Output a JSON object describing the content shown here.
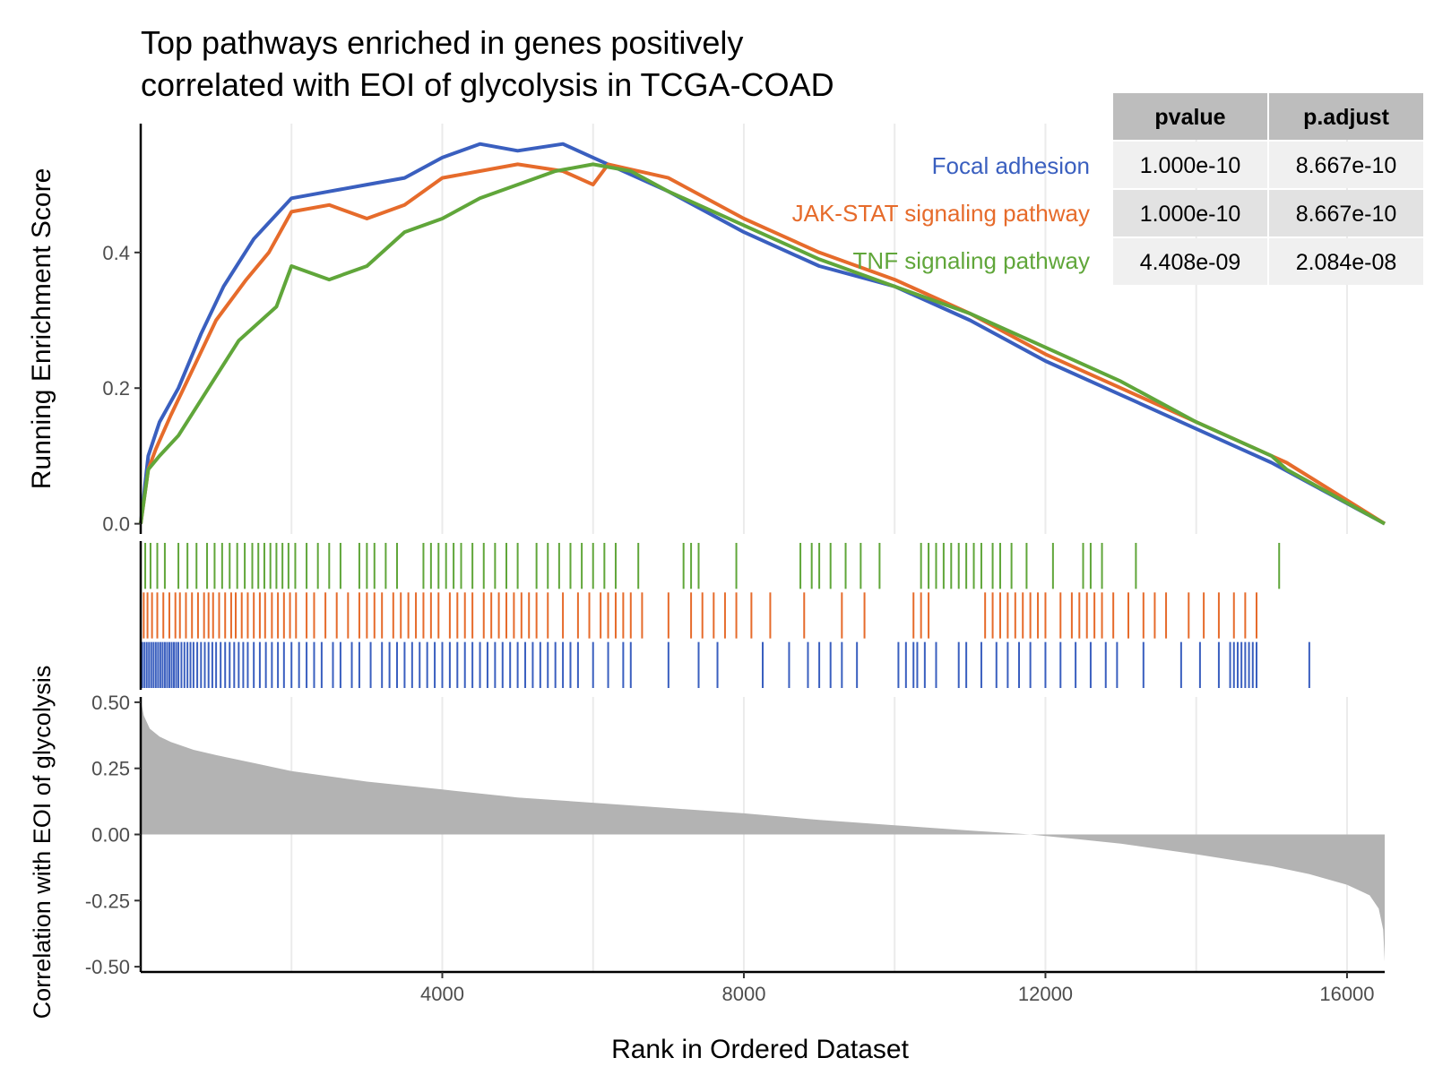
{
  "chart_data": {
    "type": "line",
    "title_line1": "Top pathways enriched in genes positively",
    "title_line2": "correlated with EOI of glycolysis in TCGA-COAD",
    "xlabel": "Rank in Ordered Dataset",
    "ylabel_top": "Running Enrichment Score",
    "ylabel_bottom": "Correlation with EOI of glycolysis",
    "xlim": [
      0,
      16500
    ],
    "x_ticks": [
      "4000",
      "8000",
      "12000",
      "16000"
    ],
    "x_tick_values": [
      4000,
      8000,
      12000,
      16000
    ],
    "es_ylim": [
      -0.015,
      0.59
    ],
    "es_ticks": [
      "0.0",
      "0.2",
      "0.4"
    ],
    "es_tick_values": [
      0.0,
      0.2,
      0.4
    ],
    "corr_ylim": [
      -0.52,
      0.52
    ],
    "corr_ticks": [
      "0.50",
      "0.25",
      "0.00",
      "-0.25",
      "-0.50"
    ],
    "corr_tick_values": [
      0.5,
      0.25,
      0.0,
      -0.25,
      -0.5
    ],
    "series": [
      {
        "name": "Focal adhesion",
        "color": "#3a5fbf",
        "x": [
          0,
          100,
          250,
          500,
          800,
          1100,
          1500,
          2000,
          2500,
          3000,
          3500,
          4000,
          4500,
          5000,
          5600,
          6000,
          7000,
          8000,
          9000,
          10000,
          11000,
          12000,
          13000,
          14000,
          15000,
          15500,
          16500
        ],
        "y": [
          0.0,
          0.1,
          0.15,
          0.2,
          0.28,
          0.35,
          0.42,
          0.48,
          0.49,
          0.5,
          0.51,
          0.54,
          0.56,
          0.55,
          0.56,
          0.54,
          0.49,
          0.43,
          0.38,
          0.35,
          0.3,
          0.24,
          0.19,
          0.14,
          0.09,
          0.06,
          0.0
        ],
        "hits": [
          20,
          50,
          80,
          110,
          140,
          170,
          200,
          230,
          260,
          290,
          320,
          350,
          380,
          410,
          440,
          470,
          500,
          540,
          580,
          620,
          660,
          700,
          750,
          800,
          850,
          900,
          950,
          1000,
          1060,
          1120,
          1180,
          1240,
          1300,
          1360,
          1420,
          1500,
          1580,
          1660,
          1740,
          1820,
          1900,
          2000,
          2100,
          2200,
          2300,
          2400,
          2550,
          2650,
          2800,
          2900,
          3050,
          3200,
          3300,
          3400,
          3500,
          3600,
          3700,
          3800,
          3900,
          4000,
          4100,
          4200,
          4300,
          4400,
          4500,
          4600,
          4700,
          4800,
          4900,
          5000,
          5100,
          5200,
          5300,
          5400,
          5500,
          5600,
          5700,
          5800,
          6000,
          6200,
          6400,
          6500,
          7000,
          7400,
          7650,
          8250,
          8600,
          8850,
          9000,
          9150,
          9300,
          9500,
          10050,
          10150,
          10250,
          10300,
          10400,
          10550,
          10850,
          10950,
          11150,
          11350,
          11500,
          11650,
          11800,
          12000,
          12200,
          12400,
          12600,
          12800,
          12950,
          13300,
          13800,
          14050,
          14300,
          14450,
          14500,
          14550,
          14600,
          14650,
          14700,
          14750,
          14800,
          15500
        ]
      },
      {
        "name": "JAK-STAT signaling pathway",
        "color": "#e66b2b",
        "x": [
          0,
          100,
          200,
          400,
          700,
          1000,
          1400,
          1700,
          2000,
          2500,
          3000,
          3500,
          4000,
          4500,
          5000,
          5600,
          6000,
          6200,
          7000,
          8000,
          9000,
          10000,
          11000,
          12000,
          13000,
          14000,
          15000,
          15200,
          16500
        ],
        "y": [
          0.0,
          0.08,
          0.11,
          0.16,
          0.23,
          0.3,
          0.36,
          0.4,
          0.46,
          0.47,
          0.45,
          0.47,
          0.51,
          0.52,
          0.53,
          0.52,
          0.5,
          0.53,
          0.51,
          0.45,
          0.4,
          0.36,
          0.31,
          0.25,
          0.2,
          0.15,
          0.1,
          0.09,
          0.0
        ]
      },
      {
        "name": "TNF signaling pathway",
        "color": "#60a63a",
        "x": [
          0,
          100,
          250,
          500,
          900,
          1300,
          1800,
          2000,
          2500,
          3000,
          3500,
          4000,
          4500,
          5000,
          5500,
          6000,
          6500,
          7000,
          8000,
          9000,
          10000,
          11000,
          12000,
          13000,
          14000,
          15000,
          15200,
          16500
        ],
        "y": [
          0.0,
          0.08,
          0.1,
          0.13,
          0.2,
          0.27,
          0.32,
          0.38,
          0.36,
          0.38,
          0.43,
          0.45,
          0.48,
          0.5,
          0.52,
          0.53,
          0.52,
          0.49,
          0.44,
          0.39,
          0.35,
          0.31,
          0.26,
          0.21,
          0.15,
          0.1,
          0.08,
          0.0
        ]
      }
    ],
    "hits": {
      "focal": [
        20,
        50,
        80,
        110,
        140,
        170,
        200,
        230,
        260,
        290,
        320,
        350,
        380,
        410,
        440,
        470,
        500,
        540,
        580,
        620,
        660,
        700,
        750,
        800,
        850,
        900,
        950,
        1000,
        1060,
        1120,
        1180,
        1240,
        1300,
        1360,
        1420,
        1500,
        1580,
        1660,
        1740,
        1820,
        1900,
        2000,
        2100,
        2200,
        2300,
        2400,
        2550,
        2650,
        2800,
        2900,
        3050,
        3200,
        3300,
        3400,
        3500,
        3600,
        3700,
        3800,
        3900,
        4000,
        4100,
        4200,
        4300,
        4400,
        4500,
        4600,
        4700,
        4800,
        4900,
        5000,
        5100,
        5200,
        5300,
        5400,
        5500,
        5600,
        5700,
        5800,
        6000,
        6200,
        6400,
        6500,
        7000,
        7400,
        7650,
        8250,
        8600,
        8850,
        9000,
        9150,
        9300,
        9500,
        10050,
        10150,
        10250,
        10300,
        10400,
        10550,
        10850,
        10950,
        11150,
        11350,
        11500,
        11650,
        11800,
        12000,
        12200,
        12400,
        12600,
        12800,
        12950,
        13300,
        13800,
        14050,
        14300,
        14450,
        14500,
        14550,
        14600,
        14650,
        14700,
        14750,
        14800,
        15500
      ],
      "jak": [
        40,
        90,
        150,
        220,
        300,
        380,
        460,
        520,
        600,
        680,
        760,
        840,
        900,
        960,
        1040,
        1120,
        1200,
        1260,
        1340,
        1420,
        1500,
        1580,
        1650,
        1740,
        1820,
        1900,
        1980,
        2060,
        2200,
        2300,
        2450,
        2600,
        2750,
        2900,
        3000,
        3100,
        3200,
        3350,
        3450,
        3550,
        3650,
        3750,
        3850,
        3950,
        4100,
        4200,
        4300,
        4400,
        4550,
        4650,
        4750,
        4850,
        4950,
        5050,
        5150,
        5250,
        5400,
        5600,
        5800,
        5950,
        6100,
        6200,
        6300,
        6400,
        6500,
        6650,
        7000,
        7300,
        7450,
        7600,
        7750,
        7900,
        8100,
        8350,
        8800,
        9300,
        9600,
        10250,
        10350,
        10450,
        11200,
        11300,
        11400,
        11500,
        11600,
        11700,
        11800,
        11900,
        12000,
        12200,
        12350,
        12450,
        12550,
        12650,
        12750,
        12900,
        13100,
        13300,
        13450,
        13600,
        13900,
        14100,
        14300,
        14500,
        14650,
        14800
      ],
      "tnf": [
        60,
        130,
        220,
        320,
        500,
        620,
        740,
        880,
        980,
        1080,
        1180,
        1280,
        1380,
        1480,
        1560,
        1640,
        1720,
        1800,
        1880,
        1960,
        2050,
        2200,
        2350,
        2500,
        2650,
        2900,
        3000,
        3100,
        3250,
        3400,
        3750,
        3850,
        3950,
        4050,
        4150,
        4250,
        4400,
        4550,
        4700,
        4850,
        5000,
        5250,
        5400,
        5550,
        5700,
        5850,
        6000,
        6150,
        6300,
        6600,
        7200,
        7300,
        7400,
        7900,
        8750,
        8900,
        9000,
        9150,
        9350,
        9550,
        9800,
        10350,
        10450,
        10550,
        10650,
        10750,
        10850,
        10950,
        11050,
        11150,
        11300,
        11400,
        11550,
        11750,
        12100,
        12500,
        12600,
        12750,
        13200,
        15100
      ]
    },
    "corr": {
      "x": [
        0,
        40,
        120,
        250,
        400,
        700,
        1000,
        1500,
        2000,
        3000,
        4000,
        5000,
        6000,
        7000,
        8000,
        9000,
        10000,
        11000,
        11800,
        12500,
        13000,
        14000,
        15000,
        15500,
        16000,
        16300,
        16420,
        16480,
        16500
      ],
      "y": [
        0.51,
        0.45,
        0.4,
        0.37,
        0.35,
        0.32,
        0.3,
        0.27,
        0.24,
        0.2,
        0.17,
        0.14,
        0.12,
        0.1,
        0.08,
        0.055,
        0.035,
        0.015,
        0.0,
        -0.02,
        -0.035,
        -0.075,
        -0.12,
        -0.15,
        -0.19,
        -0.23,
        -0.28,
        -0.36,
        -0.48
      ],
      "color": "#b3b3b3"
    }
  },
  "legend": {
    "items": [
      {
        "label": "Focal adhesion",
        "color": "#3a5fbf"
      },
      {
        "label": "JAK-STAT signaling pathway",
        "color": "#e66b2b"
      },
      {
        "label": "TNF signaling pathway",
        "color": "#60a63a"
      }
    ]
  },
  "table": {
    "headers": [
      "pvalue",
      "p.adjust"
    ],
    "rows": [
      [
        "1.000e-10",
        "8.667e-10"
      ],
      [
        "1.000e-10",
        "8.667e-10"
      ],
      [
        "4.408e-09",
        "2.084e-08"
      ]
    ]
  }
}
